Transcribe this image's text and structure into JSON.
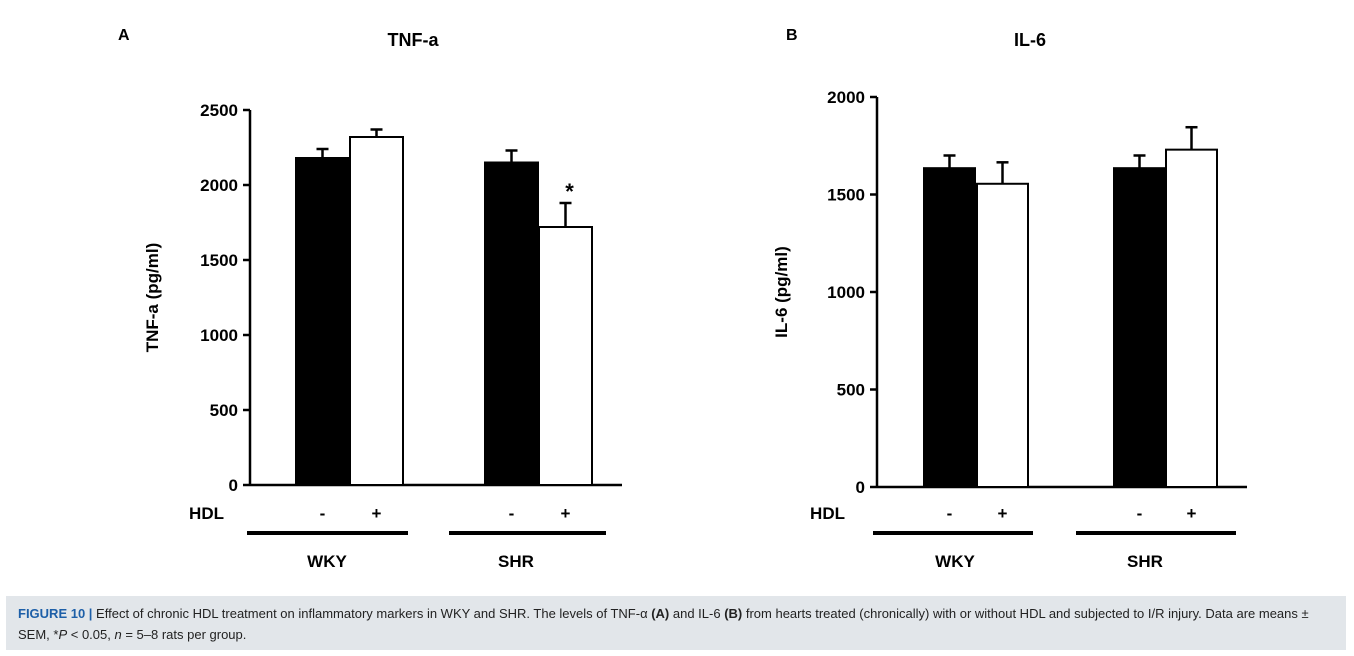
{
  "panels": [
    {
      "letter": "A"
    },
    {
      "letter": "B"
    }
  ],
  "chart_data": [
    {
      "type": "bar",
      "title": "TNF-a",
      "ylabel": "TNF-a (pg/ml)",
      "ylim": [
        0,
        2500
      ],
      "yticks": [
        0,
        500,
        1000,
        1500,
        2000,
        2500
      ],
      "condition_label": "HDL",
      "groups": [
        {
          "name": "WKY",
          "bars": [
            {
              "condition": "-",
              "value": 2180,
              "sem": 60,
              "fill": "#000000",
              "sig": ""
            },
            {
              "condition": "+",
              "value": 2320,
              "sem": 50,
              "fill": "#ffffff",
              "sig": ""
            }
          ]
        },
        {
          "name": "SHR",
          "bars": [
            {
              "condition": "-",
              "value": 2150,
              "sem": 80,
              "fill": "#000000",
              "sig": ""
            },
            {
              "condition": "+",
              "value": 1720,
              "sem": 160,
              "fill": "#ffffff",
              "sig": "*"
            }
          ]
        }
      ]
    },
    {
      "type": "bar",
      "title": "IL-6",
      "ylabel": "IL-6 (pg/ml)",
      "ylim": [
        0,
        2000
      ],
      "yticks": [
        0,
        500,
        1000,
        1500,
        2000
      ],
      "condition_label": "HDL",
      "groups": [
        {
          "name": "WKY",
          "bars": [
            {
              "condition": "-",
              "value": 1635,
              "sem": 65,
              "fill": "#000000",
              "sig": ""
            },
            {
              "condition": "+",
              "value": 1555,
              "sem": 110,
              "fill": "#ffffff",
              "sig": ""
            }
          ]
        },
        {
          "name": "SHR",
          "bars": [
            {
              "condition": "-",
              "value": 1635,
              "sem": 65,
              "fill": "#000000",
              "sig": ""
            },
            {
              "condition": "+",
              "value": 1730,
              "sem": 115,
              "fill": "#ffffff",
              "sig": ""
            }
          ]
        }
      ]
    }
  ],
  "caption": {
    "label": "FIGURE 10 |",
    "p1": " Effect of chronic HDL treatment on inflammatory markers in WKY and SHR. The levels of TNF-α ",
    "a": "(A)",
    "p2": " and IL-6 ",
    "b": "(B)",
    "p3": " from hearts treated (chronically) with or without HDL and subjected to I/R injury. Data are means ± SEM, *",
    "pvar": "P",
    "p4": " < 0.05, ",
    "nvar": "n",
    "p5": " = 5–8 rats per group."
  }
}
